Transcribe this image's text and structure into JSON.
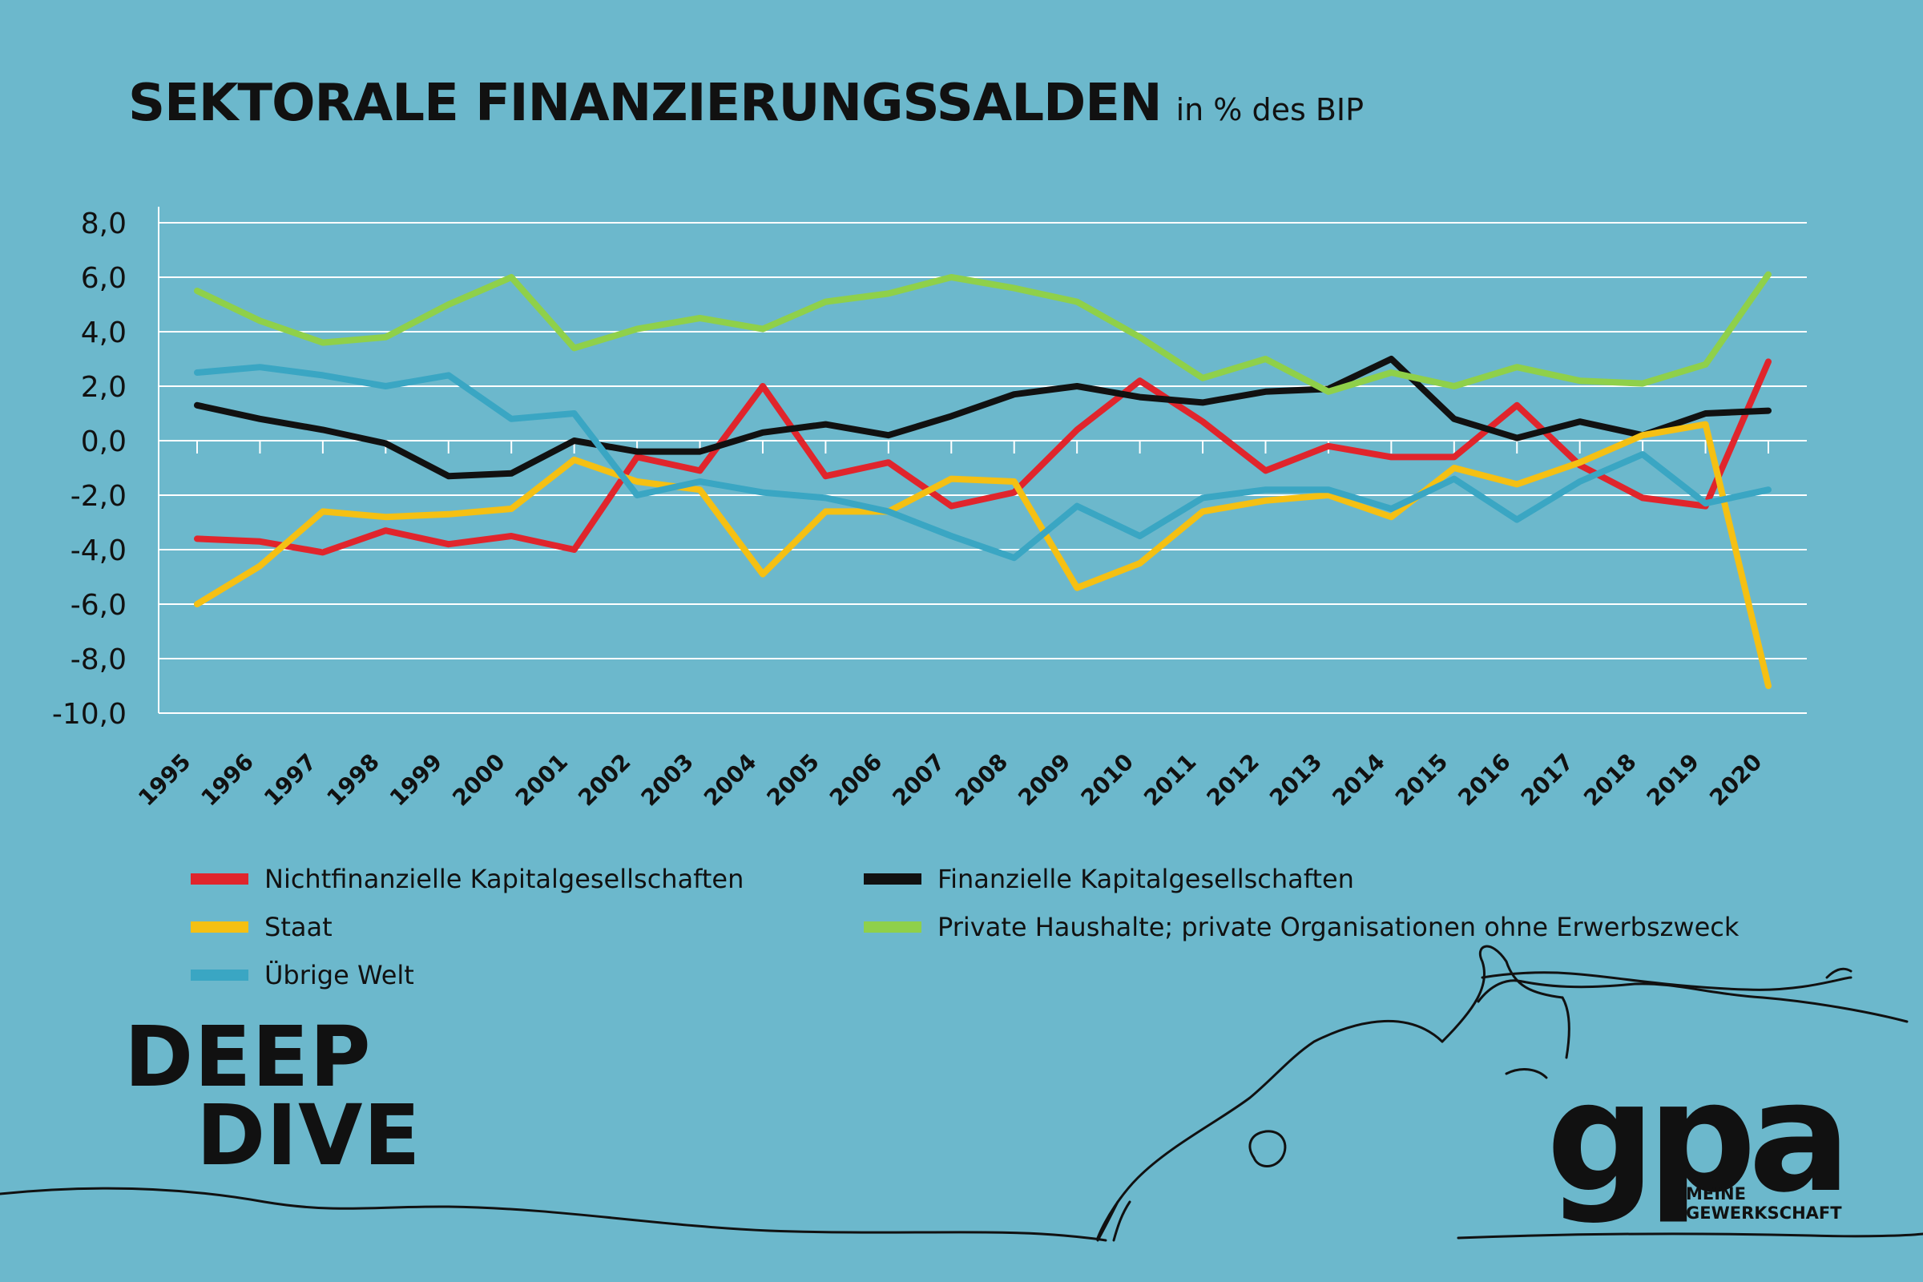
{
  "header": {
    "title": "SEKTORALE FINANZIERUNGSSALDEN",
    "subtitle": "in % des BIP"
  },
  "chart_data": {
    "type": "line",
    "title": "SEKTORALE FINANZIERUNGSSALDEN",
    "subtitle": "in % des BIP",
    "x": [
      "1995",
      "1996",
      "1997",
      "1998",
      "1999",
      "2000",
      "2001",
      "2002",
      "2003",
      "2004",
      "2005",
      "2006",
      "2007",
      "2008",
      "2009",
      "2010",
      "2011",
      "2012",
      "2013",
      "2014",
      "2015",
      "2016",
      "2017",
      "2018",
      "2019",
      "2020"
    ],
    "ylim": [
      -10,
      8
    ],
    "yticks": [
      "8,0",
      "6,0",
      "4,0",
      "2,0",
      "0,0",
      "-2,0",
      "-4,0",
      "-6,0",
      "-8,0",
      "-10,0"
    ],
    "grid": true,
    "legend_position": "bottom",
    "series": [
      {
        "name": "Nichtfinanzielle Kapitalgesellschaften",
        "color": "#e0252c",
        "values": [
          -3.6,
          -3.7,
          -4.1,
          -3.3,
          -3.8,
          -3.5,
          -4.0,
          -0.6,
          -1.1,
          2.0,
          -1.3,
          -0.8,
          -2.4,
          -1.9,
          0.4,
          2.2,
          0.7,
          -1.1,
          -0.2,
          -0.6,
          -0.6,
          1.3,
          -0.9,
          -2.1,
          -2.4,
          2.9
        ]
      },
      {
        "name": "Finanzielle Kapitalgesellschaften",
        "color": "#111111",
        "values": [
          1.3,
          0.8,
          0.4,
          -0.1,
          -1.3,
          -1.2,
          0.0,
          -0.4,
          -0.4,
          0.3,
          0.6,
          0.2,
          0.9,
          1.7,
          2.0,
          1.6,
          1.4,
          1.8,
          1.9,
          3.0,
          0.8,
          0.1,
          0.7,
          0.2,
          1.0,
          1.1
        ]
      },
      {
        "name": "Staat",
        "color": "#f5c013",
        "values": [
          -6.0,
          -4.6,
          -2.6,
          -2.8,
          -2.7,
          -2.5,
          -0.7,
          -1.5,
          -1.8,
          -4.9,
          -2.6,
          -2.6,
          -1.4,
          -1.5,
          -5.4,
          -4.5,
          -2.6,
          -2.2,
          -2.0,
          -2.8,
          -1.0,
          -1.6,
          -0.8,
          0.2,
          0.6,
          -9.0
        ]
      },
      {
        "name": "Private Haushalte; private Organisationen ohne Erwerbszweck",
        "color": "#8fd04a",
        "values": [
          5.5,
          4.4,
          3.6,
          3.8,
          5.0,
          6.0,
          3.4,
          4.1,
          4.5,
          4.1,
          5.1,
          5.4,
          6.0,
          5.6,
          5.1,
          3.8,
          2.3,
          3.0,
          1.8,
          2.5,
          2.0,
          2.7,
          2.2,
          2.1,
          2.8,
          6.1
        ]
      },
      {
        "name": "Übrige Welt",
        "color": "#3aa6c3",
        "values": [
          2.5,
          2.7,
          2.4,
          2.0,
          2.4,
          0.8,
          1.0,
          -2.0,
          -1.5,
          -1.9,
          -2.1,
          -2.6,
          -3.5,
          -4.3,
          -2.4,
          -3.5,
          -2.1,
          -1.8,
          -1.8,
          -2.5,
          -1.4,
          -2.9,
          -1.5,
          -0.5,
          -2.3,
          -1.8
        ]
      }
    ]
  },
  "legend": [
    {
      "label": "Nichtfinanzielle Kapitalgesellschaften",
      "color": "#e0252c"
    },
    {
      "label": "Finanzielle Kapitalgesellschaften",
      "color": "#111111"
    },
    {
      "label": "Staat",
      "color": "#f5c013"
    },
    {
      "label": "Private Haushalte; private Organisationen ohne Erwerbszweck",
      "color": "#8fd04a"
    },
    {
      "label": "Übrige Welt",
      "color": "#3aa6c3"
    }
  ],
  "branding": {
    "deep": "DEEP",
    "dive": "DIVE",
    "logo": "gpa",
    "logo_sub_1": "MEINE",
    "logo_sub_2": "GEWERKSCHAFT"
  },
  "colors": {
    "background": "#6cb8cc",
    "grid": "#ffffff",
    "text": "#111111"
  }
}
